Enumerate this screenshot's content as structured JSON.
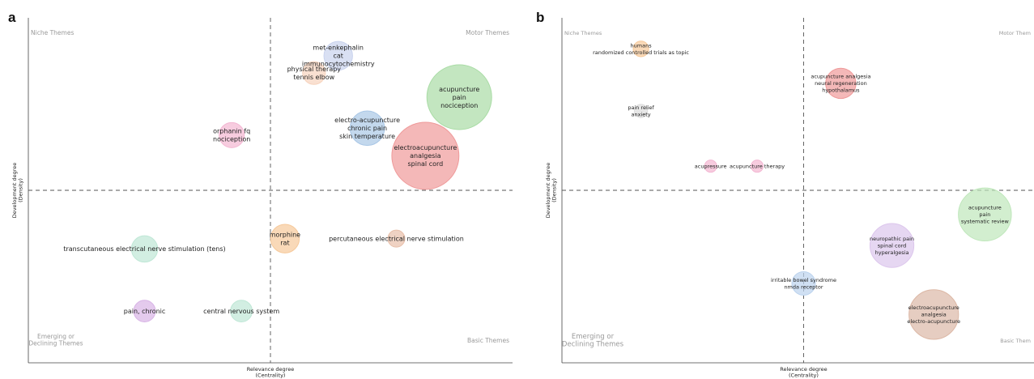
{
  "chart_data": [
    {
      "type": "scatter",
      "panel_label": "a",
      "xlabel": "Relevance degree\n(Centrality)",
      "ylabel": "Development degree\n(Density)",
      "quadrants": {
        "top_left": "Niche Themes",
        "top_right": "Motor Themes",
        "bottom_left": "Emerging or\nDeclining Themes",
        "bottom_right": "Basic Themes"
      },
      "grid": false,
      "points": [
        {
          "x": 0.64,
          "y": 0.89,
          "size": 0.38,
          "color": "#c9d3ee",
          "label": "met-enkephalin\ncat\nimmunocytochemistry"
        },
        {
          "x": 0.59,
          "y": 0.84,
          "size": 0.28,
          "color": "#f6d3bd",
          "label": "physical therapy\ntennis elbow"
        },
        {
          "x": 0.89,
          "y": 0.77,
          "size": 1.0,
          "color": "#a9dca5",
          "label": "acupuncture\npain\nnociception"
        },
        {
          "x": 0.7,
          "y": 0.68,
          "size": 0.48,
          "color": "#a9c7e6",
          "label": "electro-acupuncture\nchronic pain\nskin temperature"
        },
        {
          "x": 0.82,
          "y": 0.6,
          "size": 1.04,
          "color": "#ef9a9a",
          "label": "electroacupuncture\nanalgesia\nspinal cord"
        },
        {
          "x": 0.42,
          "y": 0.66,
          "size": 0.32,
          "color": "#f3b6d2",
          "label": "orphanin fq\nnociception"
        },
        {
          "x": 0.53,
          "y": 0.36,
          "size": 0.38,
          "color": "#f6c99a",
          "label": "morphine\nrat"
        },
        {
          "x": 0.76,
          "y": 0.36,
          "size": 0.18,
          "color": "#e8bfa9",
          "label": "percutaneous electrical nerve stimulation"
        },
        {
          "x": 0.24,
          "y": 0.33,
          "size": 0.34,
          "color": "#bfe7d6",
          "label": "transcutaneous electrical nerve stimulation (tens)"
        },
        {
          "x": 0.24,
          "y": 0.15,
          "size": 0.26,
          "color": "#d8b4e6",
          "label": "pain, chronic"
        },
        {
          "x": 0.44,
          "y": 0.15,
          "size": 0.26,
          "color": "#bfe7d6",
          "label": "central nervous system"
        }
      ]
    },
    {
      "type": "scatter",
      "panel_label": "b",
      "xlabel": "Relevance degree\n(Centrality)",
      "ylabel": "Development degree\n(Density)",
      "quadrants": {
        "top_left": "Niche Themes",
        "top_right": "Motor Them",
        "bottom_left": "Emerging or\nDeclining Themes",
        "bottom_right": "Basic Them"
      },
      "grid": false,
      "points": [
        {
          "x": 0.17,
          "y": 0.91,
          "size": 0.16,
          "color": "#f6c99a",
          "label": "humans\nrandomized controlled trials as topic"
        },
        {
          "x": 0.6,
          "y": 0.81,
          "size": 0.42,
          "color": "#ef9a9a",
          "label": "acupuncture analgesia\nneural regeneration\nhypothalamus"
        },
        {
          "x": 0.17,
          "y": 0.73,
          "size": 0.12,
          "color": "#dddddd",
          "label": "pain relief\nanxiety"
        },
        {
          "x": 0.32,
          "y": 0.57,
          "size": 0.1,
          "color": "#f3b6d2",
          "label": "acupressure"
        },
        {
          "x": 0.42,
          "y": 0.57,
          "size": 0.1,
          "color": "#f3b6d2",
          "label": "acupuncture therapy"
        },
        {
          "x": 0.91,
          "y": 0.43,
          "size": 0.82,
          "color": "#bfe7bb",
          "label": "acupuncture\npain\nsystematic review"
        },
        {
          "x": 0.71,
          "y": 0.34,
          "size": 0.66,
          "color": "#dcc6ec",
          "label": "neuropathic pain\nspinal cord\nhyperalgesia"
        },
        {
          "x": 0.52,
          "y": 0.23,
          "size": 0.3,
          "color": "#bcd3ee",
          "label": "irritable bowel syndrome\nnmda receptor"
        },
        {
          "x": 0.8,
          "y": 0.14,
          "size": 0.76,
          "color": "#dcb8a6",
          "label": "electroacupuncture\nanalgesia\nelectro-acupuncture"
        }
      ]
    }
  ]
}
